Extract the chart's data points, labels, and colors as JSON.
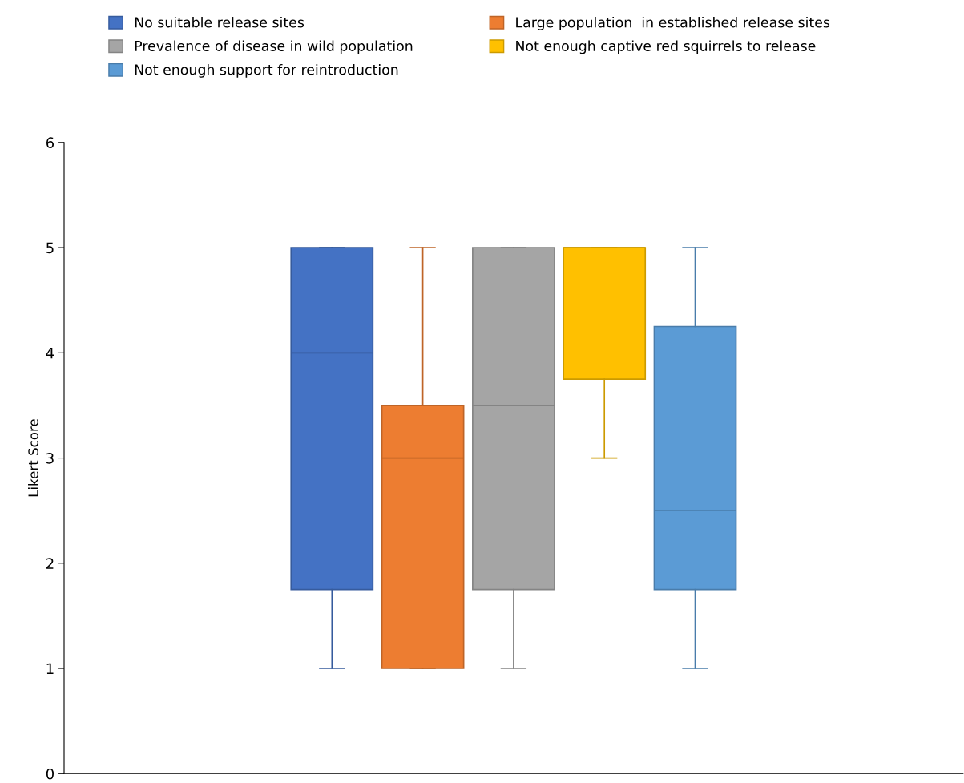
{
  "chart_data": {
    "type": "box",
    "ylabel": "Likert Score",
    "categories": [
      null
    ],
    "ylim": [
      0,
      6
    ],
    "yticks": [
      0,
      1,
      2,
      3,
      4,
      5,
      6
    ],
    "grid": false,
    "legend": "top",
    "series": [
      {
        "name": "No suitable release sites",
        "color": "#4472c4",
        "boxes": [
          {
            "low": 1,
            "q1": 1.75,
            "median": 4,
            "q3": 5,
            "high": 5
          }
        ]
      },
      {
        "name": "Large population  in established release sites",
        "color": "#ed7d31",
        "boxes": [
          {
            "low": 1,
            "q1": 1,
            "median": 3,
            "q3": 3.5,
            "high": 5
          }
        ]
      },
      {
        "name": "Prevalence of disease in wild population",
        "color": "#a5a5a5",
        "boxes": [
          {
            "low": 1,
            "q1": 1.75,
            "median": 3.5,
            "q3": 5,
            "high": 5
          }
        ]
      },
      {
        "name": "Not enough captive red squirrels to release",
        "color": "#ffc000",
        "boxes": [
          {
            "low": 3,
            "q1": 3.75,
            "median": 5,
            "q3": 5,
            "high": 5
          }
        ]
      },
      {
        "name": "Not enough support for reintroduction",
        "color": "#5b9bd5",
        "boxes": [
          {
            "low": 1,
            "q1": 1.75,
            "median": 2.5,
            "q3": 4.25,
            "high": 5
          }
        ]
      }
    ]
  }
}
